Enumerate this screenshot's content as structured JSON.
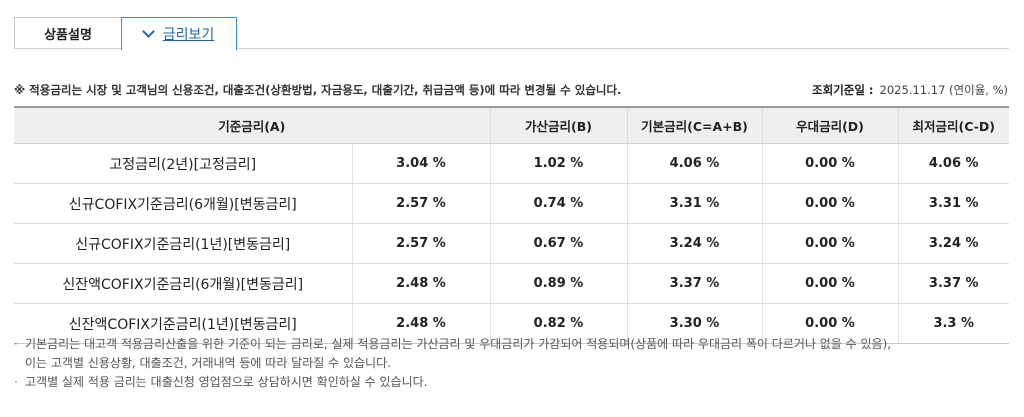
{
  "tabs": [
    {
      "label": "상품설명",
      "active": false
    },
    {
      "label": "금리보기",
      "active": true
    }
  ],
  "notice": "※ 적용금리는 시장 및 고객님의 신용조건, 대출조건(상환방법, 자금용도, 대출기간, 취급금액 등)에 따라 변경될 수 있습니다.",
  "ref_date": {
    "label": "조회기준일 :",
    "value": "2025.11.17 (연이율, %)"
  },
  "table": {
    "headers": [
      "기준금리(A)",
      "가산금리(B)",
      "기본금리(C=A+B)",
      "우대금리(D)",
      "최저금리(C-D)"
    ],
    "rows": [
      {
        "name": "고정금리(2년)[고정금리]",
        "base": "3.04 %",
        "add": "1.02 %",
        "basic": "4.06 %",
        "pref": "0.00 %",
        "min": "4.06 %"
      },
      {
        "name": "신규COFIX기준금리(6개월)[변동금리]",
        "base": "2.57 %",
        "add": "0.74 %",
        "basic": "3.31 %",
        "pref": "0.00 %",
        "min": "3.31 %"
      },
      {
        "name": "신규COFIX기준금리(1년)[변동금리]",
        "base": "2.57 %",
        "add": "0.67 %",
        "basic": "3.24 %",
        "pref": "0.00 %",
        "min": "3.24 %"
      },
      {
        "name": "신잔액COFIX기준금리(6개월)[변동금리]",
        "base": "2.48 %",
        "add": "0.89 %",
        "basic": "3.37 %",
        "pref": "0.00 %",
        "min": "3.37 %"
      },
      {
        "name": "신잔액COFIX기준금리(1년)[변동금리]",
        "base": "2.48 %",
        "add": "0.82 %",
        "basic": "3.30 %",
        "pref": "0.00 %",
        "min": "3.3 %"
      }
    ]
  },
  "footnotes": {
    "note1_line1": "기본금리는 대고객 적용금리산출을 위한 기준이 되는 금리로, 실제 적용금리는 가산금리 및 우대금리가 가감되어 적용되며(상품에 따라 우대금리 폭이 다르거나 없을 수 있음),",
    "note1_line2": "이는 고객별 신용상황, 대출조건, 거래내역 등에 따라 달라질 수 있습니다.",
    "note2": "고객별 실제 적용 금리는 대출신청 영업점으로 상담하시면 확인하실 수 있습니다."
  }
}
